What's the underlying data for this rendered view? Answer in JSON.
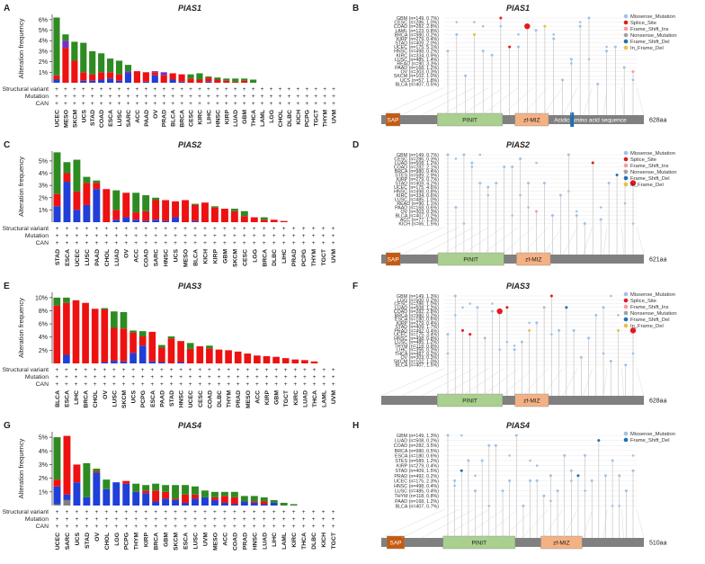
{
  "colors": {
    "structural": "#7B2FBE",
    "mutation": "#2E8B22",
    "amplification": "#EE1111",
    "deep_deletion": "#1F3FD8",
    "multiple": "#7F7F7F",
    "lollipop_stem": "#bdbdbd",
    "protein_bar": "#808080",
    "sap": "#C55A11",
    "pinit": "#A9D08E",
    "zfmiz": "#F4B183",
    "missense": "#9DC3E6",
    "splice": "#E31A1C",
    "frame_ins": "#FF9999",
    "nonsense": "#A0A0A0",
    "frame_del": "#1F6FB4",
    "inframe_del": "#E8C14A"
  },
  "row_labels": [
    "Structural variant",
    "Mutation",
    "CAN"
  ],
  "legend_symbol": "+",
  "chart_data": [
    {
      "letter": "A",
      "type": "bar",
      "stacked": true,
      "title": "PIAS1",
      "ylabel": "Alteration frequency",
      "ylim": [
        0,
        6.5
      ],
      "yticks": [
        "1%",
        "2%",
        "3%",
        "4%",
        "5%",
        "6%"
      ],
      "yticks_values": [
        1,
        2,
        3,
        4,
        5,
        6
      ],
      "categories": [
        "UCEC",
        "MESO",
        "SKCM",
        "UCS",
        "STAD",
        "COAD",
        "ESCA",
        "LUSC",
        "SARC",
        "ACC",
        "PAAD",
        "OV",
        "PRAD",
        "BLCA",
        "BRCA",
        "CESC",
        "KIRC",
        "LIHC",
        "HNSC",
        "KIRP",
        "LUAD",
        "GBM",
        "THCA",
        "LAML",
        "LGG",
        "CHOL",
        "DLBC",
        "KICH",
        "PCPG",
        "TGCT",
        "THYM",
        "UVM"
      ],
      "series": [
        {
          "key": "deep_deletion",
          "values": [
            0.3,
            0,
            0,
            0.2,
            0.2,
            0.3,
            0.4,
            0.2,
            0.9,
            0,
            0.1,
            0.7,
            0,
            0.3,
            0.1,
            0,
            0,
            0.1,
            0,
            0,
            0,
            0,
            0,
            0,
            0,
            0,
            0,
            0,
            0,
            0,
            0,
            0
          ]
        },
        {
          "key": "amplification",
          "values": [
            0.4,
            3.3,
            2.1,
            0.8,
            0.6,
            0.7,
            0.6,
            0.6,
            0,
            1.1,
            0.9,
            0.3,
            0.7,
            0.6,
            0.7,
            0.4,
            0.3,
            0.4,
            0.3,
            0.2,
            0.1,
            0.2,
            0,
            0,
            0,
            0,
            0,
            0,
            0,
            0,
            0,
            0
          ]
        },
        {
          "key": "structural",
          "values": [
            0,
            0.7,
            0,
            0,
            0,
            0,
            0,
            0,
            0.2,
            0,
            0,
            0.1,
            0.3,
            0,
            0,
            0,
            0,
            0,
            0,
            0,
            0,
            0,
            0,
            0,
            0,
            0,
            0,
            0,
            0,
            0,
            0,
            0
          ]
        },
        {
          "key": "mutation",
          "values": [
            5.5,
            0.6,
            1.8,
            2.8,
            2.2,
            1.8,
            1.3,
            1.3,
            0.6,
            0,
            0,
            0,
            0,
            0,
            0,
            0.4,
            0.6,
            0.1,
            0.2,
            0.2,
            0.3,
            0.2,
            0.3,
            0,
            0,
            0,
            0,
            0,
            0,
            0,
            0,
            0
          ]
        }
      ]
    },
    {
      "letter": "C",
      "type": "bar",
      "stacked": true,
      "title": "PIAS2",
      "ylabel": "Alteration frequency",
      "ylim": [
        0,
        5.8
      ],
      "yticks": [
        "1%",
        "2%",
        "3%",
        "4%",
        "5%"
      ],
      "yticks_values": [
        1,
        2,
        3,
        4,
        5
      ],
      "categories": [
        "STAD",
        "ESCA",
        "UCEC",
        "LUSC",
        "PAAD",
        "CHOL",
        "LUAD",
        "OV",
        "ACC",
        "COAD",
        "SARC",
        "HNSC",
        "UCS",
        "MESO",
        "BLCA",
        "KICH",
        "KIRP",
        "GBM",
        "SKCM",
        "CESC",
        "LGG",
        "BRCA",
        "DLBC",
        "LIHC",
        "PRAD",
        "PCPG",
        "THYM",
        "TGCT",
        "UVM"
      ],
      "series": [
        {
          "key": "deep_deletion",
          "values": [
            1.3,
            3.3,
            1.0,
            1.4,
            2.7,
            0,
            0.2,
            0.4,
            0.2,
            0.1,
            0.2,
            0.1,
            0.4,
            0,
            0.1,
            0,
            0,
            0,
            0,
            0,
            0,
            0,
            0,
            0,
            0,
            0,
            0,
            0,
            0
          ]
        },
        {
          "key": "amplification",
          "values": [
            1.0,
            0.7,
            1.5,
            1.8,
            0.5,
            2.7,
            0.8,
            2.0,
            0.6,
            0.8,
            1.6,
            1.7,
            1.3,
            1.8,
            1.3,
            1.6,
            1.2,
            1.1,
            0.9,
            0.5,
            0.4,
            0.2,
            0.2,
            0.1,
            0,
            0,
            0,
            0,
            0
          ]
        },
        {
          "key": "mutation",
          "values": [
            3.4,
            0.9,
            2.6,
            0.5,
            0.2,
            0,
            1.6,
            0,
            1.6,
            1.3,
            0.2,
            0,
            0,
            0,
            0.1,
            0,
            0.1,
            0,
            0.2,
            0.4,
            0,
            0.2,
            0,
            0,
            0,
            0,
            0,
            0,
            0
          ]
        }
      ]
    },
    {
      "letter": "E",
      "type": "bar",
      "stacked": true,
      "title": "PIAS3",
      "ylabel": "Alteration frequency",
      "ylim": [
        0,
        10.8
      ],
      "yticks": [
        "2%",
        "4%",
        "6%",
        "8%",
        "10%"
      ],
      "yticks_values": [
        2,
        4,
        6,
        8,
        10
      ],
      "categories": [
        "BLCA",
        "ESCA",
        "LIHC",
        "BRCA",
        "CHOL",
        "OV",
        "LUSC",
        "SKCM",
        "UCS",
        "PCPG",
        "ESCA",
        "PAAD",
        "STAD",
        "HNSC",
        "UCEC",
        "CESC",
        "COAD",
        "DLBC",
        "THYM",
        "PRAD",
        "MESO",
        "ACC",
        "KIRP",
        "GBM",
        "TGCT",
        "KIRC",
        "LUAD",
        "THCA",
        "LAML",
        "UVM"
      ],
      "series": [
        {
          "key": "deep_deletion",
          "values": [
            0,
            1.3,
            0,
            0,
            0,
            0.2,
            0.4,
            0.3,
            1.6,
            2.7,
            0.3,
            0.2,
            0,
            0.2,
            0,
            0,
            0,
            0,
            0,
            0,
            0,
            0,
            0,
            0,
            0,
            0,
            0,
            0,
            0,
            0
          ]
        },
        {
          "key": "amplification",
          "values": [
            8.8,
            7.9,
            9.6,
            9.2,
            8.3,
            8.0,
            5.0,
            5.0,
            3.1,
            1.4,
            4.5,
            2.2,
            3.8,
            3.2,
            2.2,
            2.6,
            2.3,
            2.1,
            2.0,
            1.8,
            1.5,
            1.2,
            1.1,
            1.0,
            0.8,
            0.6,
            0.5,
            0.3,
            0,
            0
          ]
        },
        {
          "key": "mutation",
          "values": [
            1.2,
            0.8,
            0,
            0,
            0,
            0.2,
            2.5,
            2.5,
            0.3,
            0.8,
            0,
            0.4,
            0.3,
            0,
            0.9,
            0,
            0.4,
            0,
            0,
            0,
            0,
            0,
            0,
            0,
            0,
            0,
            0,
            0,
            0,
            0
          ]
        }
      ]
    },
    {
      "letter": "G",
      "type": "bar",
      "stacked": true,
      "title": "PIAS4",
      "ylabel": "Alteration frequency",
      "ylim": [
        0,
        5.4
      ],
      "yticks": [
        "1%",
        "2%",
        "3%",
        "4%",
        "5%"
      ],
      "yticks_values": [
        1,
        2,
        3,
        4,
        5
      ],
      "categories": [
        "UCEC",
        "SARC",
        "UCS",
        "STAD",
        "OV",
        "CHOL",
        "LGG",
        "PCPG",
        "THYM",
        "KIRP",
        "BRCA",
        "GBM",
        "SKCM",
        "ESCA",
        "LUSC",
        "UVM",
        "MESO",
        "ACC",
        "COAD",
        "PRAD",
        "HNSC",
        "LUAD",
        "LIHC",
        "LAML",
        "KIRC",
        "THCA",
        "DLBC",
        "KICH",
        "TGCT"
      ],
      "series": [
        {
          "key": "multiple",
          "values": [
            0.1,
            0.4,
            0,
            0,
            0,
            0,
            0,
            0,
            0,
            0,
            0,
            0,
            0,
            0,
            0,
            0,
            0,
            0,
            0,
            0,
            0,
            0,
            0,
            0,
            0,
            0,
            0,
            0,
            0
          ]
        },
        {
          "key": "deep_deletion",
          "values": [
            1.3,
            0.4,
            1.7,
            0.6,
            2.4,
            1.2,
            1.7,
            1.6,
            1.0,
            0.9,
            0.3,
            0.5,
            0.4,
            0.2,
            0.5,
            0.6,
            0.4,
            0.2,
            0.1,
            0.3,
            0.2,
            0.1,
            0.2,
            0,
            0,
            0,
            0,
            0,
            0
          ]
        },
        {
          "key": "amplification",
          "values": [
            0.5,
            4.3,
            1.3,
            0,
            0.1,
            0,
            0,
            0.2,
            0,
            0.2,
            0.8,
            0.5,
            0.1,
            0.6,
            0.3,
            0,
            0.2,
            0.5,
            0.5,
            0,
            0.1,
            0.2,
            0,
            0,
            0,
            0,
            0,
            0,
            0
          ]
        },
        {
          "key": "mutation",
          "values": [
            3.1,
            0,
            0,
            2.5,
            0.2,
            0.7,
            0,
            0,
            0.6,
            0.4,
            0.5,
            0.5,
            1.0,
            0.7,
            0.6,
            0.5,
            0.4,
            0.3,
            0.4,
            0.4,
            0.4,
            0.3,
            0.2,
            0.2,
            0.1,
            0,
            0,
            0,
            0
          ]
        }
      ]
    },
    {
      "letter": "B",
      "type": "lollipop",
      "title": "PIAS1",
      "length_label": "628aa",
      "length": 628,
      "domains": [
        {
          "name": "SAP",
          "start": 11,
          "end": 45,
          "color": "sap"
        },
        {
          "name": "PINIT",
          "start": 134,
          "end": 290,
          "color": "pinit"
        },
        {
          "name": "zf-MIZ",
          "start": 320,
          "end": 400,
          "color": "zfmiz"
        },
        {
          "name": "Acidic amino acid sequence",
          "start": 440,
          "end": 560,
          "color": "protein_bar"
        }
      ],
      "extra_marker": {
        "position": 452,
        "color": "frame_del"
      },
      "samples": [
        "GBM (n=149, 0.7%)",
        "CESC (n=286, 1.0%)",
        "COAD (n=282, 2.8%)",
        "LAML (n=123, 0.8%)",
        "BRCA (n=980, 0.2%)",
        "KIRP (n=279, 0.4%)",
        "STAD (n=409, 2.0%)",
        "UCEC (n=175, 5.1%)",
        "HNSC (n=498, 0.2%)",
        "KIRC (n=334, 0.9%)",
        "LUSC (n=485, 1.4%)",
        "READ (n=90, 3.3%)",
        "PAAD (n=168, 1.2%)",
        "OV (n=303, 0.3%)",
        "SKCM (n=102, 1.0%)",
        "UCS (n=57, 1.8%)",
        "BLCA (n=407, 0.5%)"
      ],
      "legend": [
        {
          "label": "Missense_Mutation",
          "color": "missense"
        },
        {
          "label": "Splice_Site",
          "color": "splice"
        },
        {
          "label": "Frame_Shift_Ins",
          "color": "frame_ins"
        },
        {
          "label": "Nonsense_Mutation",
          "color": "nonsense"
        },
        {
          "label": "Frame_Shift_Del",
          "color": "frame_del"
        },
        {
          "label": "In_Frame_Del",
          "color": "inframe_del"
        }
      ]
    },
    {
      "letter": "D",
      "type": "lollipop",
      "title": "PIAS2",
      "length_label": "621aa",
      "length": 621,
      "domains": [
        {
          "name": "SAP",
          "start": 11,
          "end": 45,
          "color": "sap"
        },
        {
          "name": "PINIT",
          "start": 134,
          "end": 290,
          "color": "pinit"
        },
        {
          "name": "zf-MIZ",
          "start": 320,
          "end": 400,
          "color": "zfmiz"
        }
      ],
      "samples": [
        "GBM (n=149, 0.7%)",
        "CESC (n=286, 0.3%)",
        "LUAD (n=508, 1.2%)",
        "COAD (n=282, 2.1%)",
        "BRCA (n=980, 0.4%)",
        "STES (n=589, 2.9%)",
        "KIRP (n=279, 0.7%)",
        "STAD (n=409, 4.2%)",
        "UCEC (n=175, 4.6%)",
        "HNSC (n=498, 0.8%)",
        "KIRC (n=334, 0.6%)",
        "LUSC (n=485, 1.0%)",
        "READ (n=90, 1.1%)",
        "PAAD (n=168, 0.6%)",
        "OV (n=303, 0.3%)",
        "BLCA (n=407, 0.2%)",
        "ACC (n=77, 1.3%)",
        "KICH (n=66, 1.5%)"
      ],
      "legend": [
        {
          "label": "Missense_Mutation",
          "color": "missense"
        },
        {
          "label": "Splice_Site",
          "color": "splice"
        },
        {
          "label": "Frame_Shift_Ins",
          "color": "frame_ins"
        },
        {
          "label": "Nonsense_Mutation",
          "color": "nonsense"
        },
        {
          "label": "Frame_Shift_Del",
          "color": "frame_del"
        },
        {
          "label": "In_Frame_Del",
          "color": "inframe_del"
        }
      ]
    },
    {
      "letter": "F",
      "type": "lollipop",
      "title": "PIAS3",
      "length_label": "628aa",
      "length": 628,
      "domains": [
        {
          "name": "PINIT",
          "start": 134,
          "end": 290,
          "color": "pinit"
        },
        {
          "name": "zf-MIZ",
          "start": 320,
          "end": 400,
          "color": "zfmiz"
        }
      ],
      "samples": [
        "GBM (n=149, 1.3%)",
        "LGG (n=500, 0.2%)",
        "CESC (n=286, 1.0%)",
        "LUAD (n=508, 1.2%)",
        "COAD (n=282, 2.8%)",
        "BRCA (n=980, 0.2%)",
        "ESCA (n=180, 0.6%)",
        "KIRP (n=279, 0.4%)",
        "STAD (n=409, 1.7%)",
        "PRAD (n=492, 0.4%)",
        "UCEC (n=175, 3.4%)",
        "HNSC (n=498, 0.8%)",
        "LUSC (n=485, 1.2%)",
        "THYM (n=118, 0.8%)",
        "LIHC (n=356, 0.3%)",
        "THCA (n=487, 0.2%)",
        "OV (n=303, 0.3%)",
        "SKCM (n=102, 1.0%)",
        "BLCA (n=407, 1.5%)"
      ],
      "legend": [
        {
          "label": "Missense_Mutation",
          "color": "missense"
        },
        {
          "label": "Splice_Site",
          "color": "splice"
        },
        {
          "label": "Frame_Shift_Ins",
          "color": "frame_ins"
        },
        {
          "label": "Nonsense_Mutation",
          "color": "nonsense"
        },
        {
          "label": "Frame_Shift_Del",
          "color": "frame_del"
        },
        {
          "label": "In_Frame_Del",
          "color": "inframe_del"
        }
      ]
    },
    {
      "letter": "H",
      "type": "lollipop",
      "title": "PIAS4",
      "length_label": "510aa",
      "length": 510,
      "domains": [
        {
          "name": "SAP",
          "start": 11,
          "end": 45,
          "color": "sap"
        },
        {
          "name": "PINIT",
          "start": 120,
          "end": 260,
          "color": "pinit"
        },
        {
          "name": "zf-MIZ",
          "start": 310,
          "end": 390,
          "color": "zfmiz"
        }
      ],
      "samples": [
        "GBM (n=149, 1.3%)",
        "LUAD (n=508, 0.2%)",
        "COAD (n=282, 3.5%)",
        "BRCA (n=980, 0.5%)",
        "ESCA (n=180, 0.6%)",
        "STES (n=589, 1.2%)",
        "KIRP (n=279, 0.4%)",
        "STAD (n=409, 1.5%)",
        "PRAD (n=492, 0.2%)",
        "UCEC (n=175, 2.3%)",
        "HNSC (n=498, 0.4%)",
        "LUSC (n=485, 0.4%)",
        "THYM (n=118, 0.8%)",
        "PAAD (n=168, 1.2%)",
        "BLCA (n=407, 0.7%)"
      ],
      "legend": [
        {
          "label": "Missense_Mutation",
          "color": "missense"
        },
        {
          "label": "Frame_Shift_Del",
          "color": "frame_del"
        }
      ]
    }
  ]
}
